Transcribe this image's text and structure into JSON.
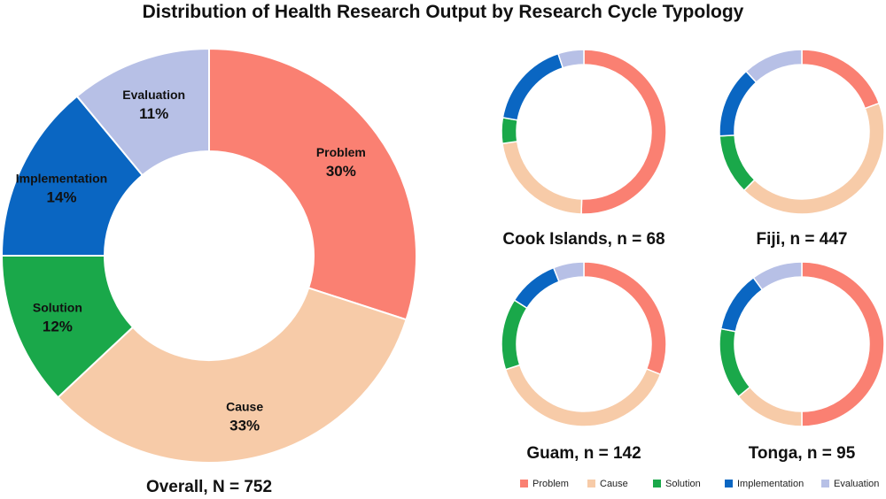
{
  "title": "Distribution of Health Research Output by Research Cycle Typology",
  "categories": [
    "Problem",
    "Cause",
    "Solution",
    "Implementation",
    "Evaluation"
  ],
  "colors": {
    "Problem": "#fa8072",
    "Cause": "#f7cba8",
    "Solution": "#1aa84a",
    "Implementation": "#0a66c2",
    "Evaluation": "#b7c0e6"
  },
  "chart_data": [
    {
      "type": "pie",
      "variant": "donut",
      "caption": "Overall, N = 752",
      "values": [
        30,
        33,
        12,
        14,
        11
      ],
      "labels": [
        "30%",
        "33%",
        "12%",
        "14%",
        "11%"
      ]
    },
    {
      "type": "pie",
      "variant": "donut",
      "caption": "Cook Islands, n = 68",
      "values": [
        50,
        22,
        5,
        17,
        5
      ]
    },
    {
      "type": "pie",
      "variant": "donut",
      "caption": "Fiji, n = 447",
      "values": [
        18,
        40,
        11,
        13,
        11
      ]
    },
    {
      "type": "pie",
      "variant": "donut",
      "caption": "Guam, n = 142",
      "values": [
        31,
        39,
        14,
        10,
        6
      ]
    },
    {
      "type": "pie",
      "variant": "donut",
      "caption": "Tonga, n = 95",
      "values": [
        50,
        14,
        14,
        12,
        10
      ]
    }
  ],
  "legend": {
    "position": "bottom-right",
    "items": [
      "Problem",
      "Cause",
      "Solution",
      "Implementation",
      "Evaluation"
    ]
  }
}
